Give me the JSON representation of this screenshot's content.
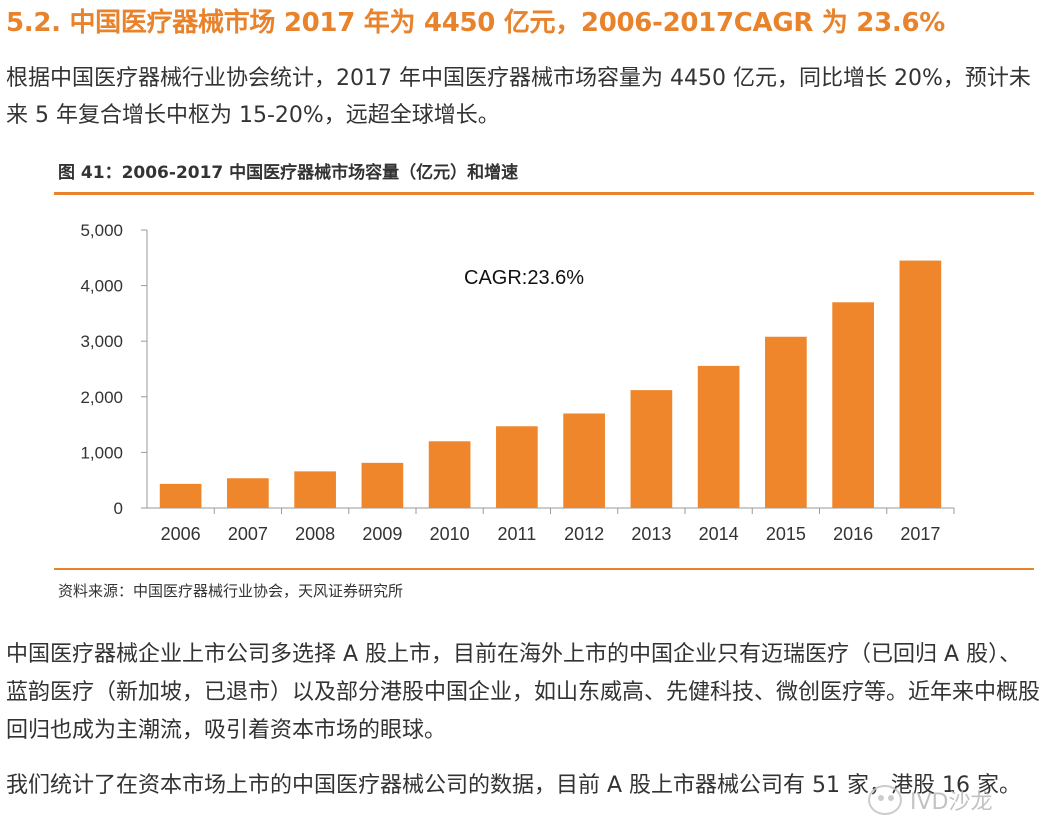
{
  "heading": "5.2. 中国医疗器械市场 2017 年为 4450 亿元，2006-2017CAGR 为 23.6%",
  "intro_paragraph": "根据中国医疗器械行业协会统计，2017 年中国医疗器械市场容量为 4450 亿元，同比增长 20%，预计未来 5 年复合增长中枢为 15-20%，远超全球增长。",
  "figure": {
    "title": "图 41：2006-2017 中国医疗器械市场容量（亿元）和增速",
    "source": "资料来源：中国医疗器械行业协会，天风证券研究所"
  },
  "chart_data": {
    "type": "bar",
    "categories": [
      "2006",
      "2007",
      "2008",
      "2009",
      "2010",
      "2011",
      "2012",
      "2013",
      "2014",
      "2015",
      "2016",
      "2017"
    ],
    "values": [
      434,
      535,
      659,
      812,
      1200,
      1470,
      1700,
      2120,
      2556,
      3080,
      3700,
      4450
    ],
    "yticks": [
      "0",
      "1,000",
      "2,000",
      "3,000",
      "4,000",
      "5,000"
    ],
    "ylim": [
      0,
      5000
    ],
    "annotation": "CAGR:23.6%",
    "bar_color": "#f0862c",
    "grid": false,
    "legend": "none"
  },
  "paragraph_2": "中国医疗器械企业上市公司多选择 A 股上市，目前在海外上市的中国企业只有迈瑞医疗（已回归 A 股）、蓝韵医疗（新加坡，已退市）以及部分港股中国企业，如山东威高、先健科技、微创医疗等。近年来中概股回归也成为主潮流，吸引着资本市场的眼球。",
  "paragraph_3": "我们统计了在资本市场上市的中国医疗器械公司的数据，目前 A 股上市器械公司有 51 家，港股 16 家。",
  "watermark": "IVD沙龙",
  "colors": {
    "accent": "#e8822b",
    "bar": "#f0862c"
  }
}
